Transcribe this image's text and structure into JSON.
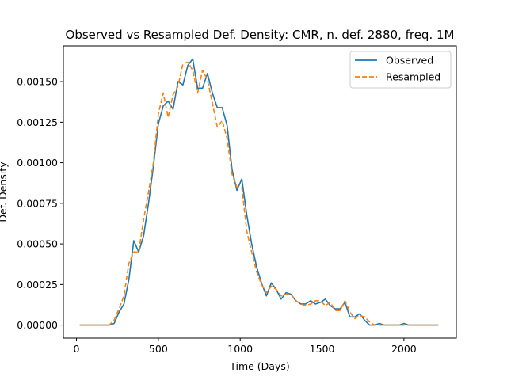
{
  "chart_data": {
    "type": "line",
    "title": "Observed vs Resampled Def. Density: CMR, n. def. 2880, freq. 1M",
    "xlabel": "Time (Days)",
    "ylabel": "Def. Density",
    "xlim": [
      -80,
      2320
    ],
    "ylim": [
      -8e-05,
      0.00172
    ],
    "xticks": [
      0,
      500,
      1000,
      1500,
      2000
    ],
    "xtick_labels": [
      "0",
      "500",
      "1000",
      "1500",
      "2000"
    ],
    "yticks": [
      0,
      0.00025,
      0.0005,
      0.00075,
      0.001,
      0.00125,
      0.0015
    ],
    "ytick_labels": [
      "0.00000",
      "0.00025",
      "0.00050",
      "0.00075",
      "0.00100",
      "0.00125",
      "0.00150"
    ],
    "grid": false,
    "legend_position": "top-right",
    "series": [
      {
        "name": "Observed",
        "color": "#1f77b4",
        "style": "solid",
        "x": [
          20,
          50,
          80,
          110,
          140,
          170,
          200,
          230,
          260,
          290,
          320,
          350,
          380,
          410,
          440,
          470,
          500,
          530,
          560,
          590,
          620,
          650,
          680,
          710,
          740,
          770,
          800,
          830,
          860,
          890,
          920,
          950,
          980,
          1010,
          1040,
          1070,
          1100,
          1130,
          1160,
          1190,
          1220,
          1250,
          1280,
          1310,
          1340,
          1370,
          1400,
          1430,
          1460,
          1490,
          1520,
          1550,
          1580,
          1610,
          1640,
          1670,
          1700,
          1730,
          1760,
          1790,
          1820,
          1850,
          1880,
          1910,
          1940,
          1970,
          2000,
          2030,
          2060,
          2090,
          2120,
          2150,
          2180,
          2210
        ],
        "y": [
          0,
          0,
          0,
          0,
          0,
          0,
          0,
          1e-05,
          8e-05,
          0.00013,
          0.00028,
          0.00052,
          0.00045,
          0.00055,
          0.00075,
          0.00098,
          0.00124,
          0.00135,
          0.00138,
          0.00133,
          0.0015,
          0.00148,
          0.0016,
          0.00164,
          0.00146,
          0.00146,
          0.00155,
          0.00143,
          0.00134,
          0.00134,
          0.00123,
          0.00096,
          0.00083,
          0.0009,
          0.00068,
          0.0005,
          0.00036,
          0.00026,
          0.00018,
          0.00026,
          0.00022,
          0.00016,
          0.0002,
          0.00019,
          0.00015,
          0.00013,
          0.00013,
          0.00015,
          0.00013,
          0.00014,
          0.00016,
          0.00012,
          0.0001,
          0.0001,
          0.00014,
          5e-05,
          5e-05,
          7e-05,
          3e-05,
          0,
          0,
          1e-05,
          0,
          0,
          0,
          0,
          1e-05,
          0,
          0,
          0,
          0,
          0,
          0,
          0
        ]
      },
      {
        "name": "Resampled",
        "color": "#ff7f0e",
        "style": "dashed",
        "x": [
          20,
          50,
          80,
          110,
          140,
          170,
          200,
          230,
          260,
          290,
          320,
          350,
          380,
          410,
          440,
          470,
          500,
          530,
          560,
          590,
          620,
          650,
          680,
          710,
          740,
          770,
          800,
          830,
          860,
          890,
          920,
          950,
          980,
          1010,
          1040,
          1070,
          1100,
          1130,
          1160,
          1190,
          1220,
          1250,
          1280,
          1310,
          1340,
          1370,
          1400,
          1430,
          1460,
          1490,
          1520,
          1550,
          1580,
          1610,
          1640,
          1670,
          1700,
          1730,
          1760,
          1790,
          1820,
          1850,
          1880,
          1910,
          1940,
          1970,
          2000,
          2030,
          2060,
          2090,
          2120,
          2150,
          2180,
          2210
        ],
        "y": [
          0,
          0,
          0,
          0,
          0,
          0,
          0,
          3e-05,
          0.0001,
          0.00018,
          0.00038,
          0.00045,
          0.00045,
          0.00065,
          0.00082,
          0.001,
          0.0013,
          0.00143,
          0.00128,
          0.00142,
          0.00147,
          0.00161,
          0.00162,
          0.00157,
          0.00143,
          0.00157,
          0.00151,
          0.00137,
          0.00122,
          0.00126,
          0.00115,
          0.00093,
          0.00085,
          0.00085,
          0.00058,
          0.00045,
          0.00033,
          0.00025,
          0.0002,
          0.00024,
          0.00022,
          0.00018,
          0.00019,
          0.00019,
          0.00015,
          0.00013,
          0.00012,
          0.00013,
          0.00015,
          0.00015,
          0.00012,
          0.00014,
          9e-05,
          9e-05,
          0.00015,
          8e-05,
          4e-05,
          6e-05,
          5e-05,
          2e-05,
          0,
          0,
          0,
          0,
          0,
          0,
          0,
          0,
          0,
          0,
          0,
          0,
          0,
          0
        ]
      }
    ]
  }
}
